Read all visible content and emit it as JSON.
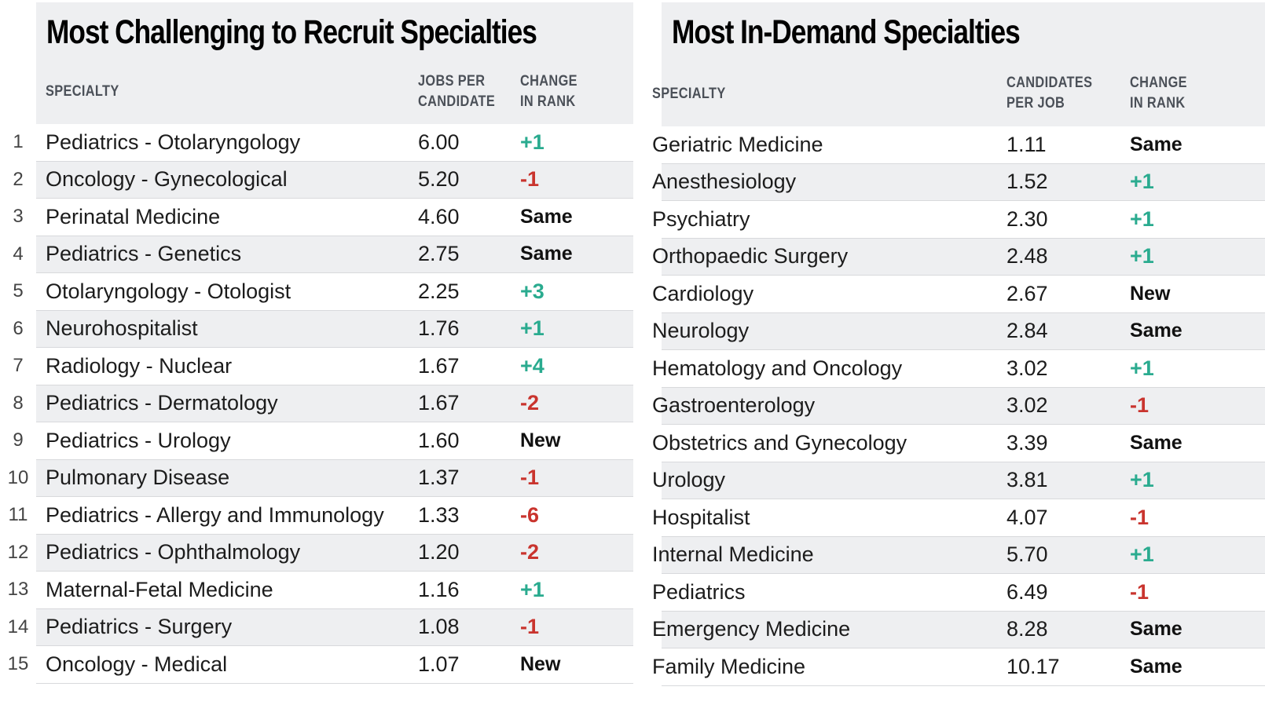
{
  "left": {
    "title": "Most Challenging to Recruit Specialties",
    "columns": {
      "specialty": "SPECIALTY",
      "metric_line1": "JOBS PER",
      "metric_line2": "CANDIDATE",
      "change_line1": "CHANGE",
      "change_line2": "IN RANK"
    },
    "rows": [
      {
        "rank": "1",
        "specialty": "Pediatrics - Otolaryngology",
        "value": "6.00",
        "change": "+1",
        "trend": "up"
      },
      {
        "rank": "2",
        "specialty": "Oncology - Gynecological",
        "value": "5.20",
        "change": "-1",
        "trend": "down"
      },
      {
        "rank": "3",
        "specialty": "Perinatal Medicine",
        "value": "4.60",
        "change": "Same",
        "trend": "neutral"
      },
      {
        "rank": "4",
        "specialty": "Pediatrics - Genetics",
        "value": "2.75",
        "change": "Same",
        "trend": "neutral"
      },
      {
        "rank": "5",
        "specialty": "Otolaryngology - Otologist",
        "value": "2.25",
        "change": "+3",
        "trend": "up"
      },
      {
        "rank": "6",
        "specialty": "Neurohospitalist",
        "value": "1.76",
        "change": "+1",
        "trend": "up"
      },
      {
        "rank": "7",
        "specialty": "Radiology - Nuclear",
        "value": "1.67",
        "change": "+4",
        "trend": "up"
      },
      {
        "rank": "8",
        "specialty": "Pediatrics - Dermatology",
        "value": "1.67",
        "change": "-2",
        "trend": "down"
      },
      {
        "rank": "9",
        "specialty": "Pediatrics - Urology",
        "value": "1.60",
        "change": "New",
        "trend": "neutral"
      },
      {
        "rank": "10",
        "specialty": "Pulmonary Disease",
        "value": "1.37",
        "change": "-1",
        "trend": "down"
      },
      {
        "rank": "11",
        "specialty": "Pediatrics - Allergy and Immunology",
        "value": "1.33",
        "change": "-6",
        "trend": "down"
      },
      {
        "rank": "12",
        "specialty": "Pediatrics - Ophthalmology",
        "value": "1.20",
        "change": "-2",
        "trend": "down"
      },
      {
        "rank": "13",
        "specialty": "Maternal-Fetal Medicine",
        "value": "1.16",
        "change": "+1",
        "trend": "up"
      },
      {
        "rank": "14",
        "specialty": "Pediatrics - Surgery",
        "value": "1.08",
        "change": "-1",
        "trend": "down"
      },
      {
        "rank": "15",
        "specialty": "Oncology - Medical",
        "value": "1.07",
        "change": "New",
        "trend": "neutral"
      }
    ]
  },
  "right": {
    "title": "Most In-Demand Specialties",
    "columns": {
      "specialty": "SPECIALTY",
      "metric_line1": "CANDIDATES",
      "metric_line2": "PER JOB",
      "change_line1": "CHANGE",
      "change_line2": "IN RANK"
    },
    "rows": [
      {
        "specialty": "Geriatric Medicine",
        "value": "1.11",
        "change": "Same",
        "trend": "neutral"
      },
      {
        "specialty": "Anesthesiology",
        "value": "1.52",
        "change": "+1",
        "trend": "up"
      },
      {
        "specialty": "Psychiatry",
        "value": "2.30",
        "change": "+1",
        "trend": "up"
      },
      {
        "specialty": "Orthopaedic Surgery",
        "value": "2.48",
        "change": "+1",
        "trend": "up"
      },
      {
        "specialty": "Cardiology",
        "value": "2.67",
        "change": "New",
        "trend": "neutral"
      },
      {
        "specialty": "Neurology",
        "value": "2.84",
        "change": "Same",
        "trend": "neutral"
      },
      {
        "specialty": "Hematology and Oncology",
        "value": "3.02",
        "change": "+1",
        "trend": "up"
      },
      {
        "specialty": "Gastroenterology",
        "value": "3.02",
        "change": "-1",
        "trend": "down"
      },
      {
        "specialty": "Obstetrics and Gynecology",
        "value": "3.39",
        "change": "Same",
        "trend": "neutral"
      },
      {
        "specialty": "Urology",
        "value": "3.81",
        "change": "+1",
        "trend": "up"
      },
      {
        "specialty": "Hospitalist",
        "value": "4.07",
        "change": "-1",
        "trend": "down"
      },
      {
        "specialty": "Internal Medicine",
        "value": "5.70",
        "change": "+1",
        "trend": "up"
      },
      {
        "specialty": "Pediatrics",
        "value": "6.49",
        "change": "-1",
        "trend": "down"
      },
      {
        "specialty": "Emergency Medicine",
        "value": "8.28",
        "change": "Same",
        "trend": "neutral"
      },
      {
        "specialty": "Family Medicine",
        "value": "10.17",
        "change": "Same",
        "trend": "neutral"
      }
    ]
  },
  "colors": {
    "header_bg": "#eeeff1",
    "up": "#2aab8f",
    "down": "#c9342e",
    "neutral": "#111111",
    "column_header": "#4b5058"
  }
}
